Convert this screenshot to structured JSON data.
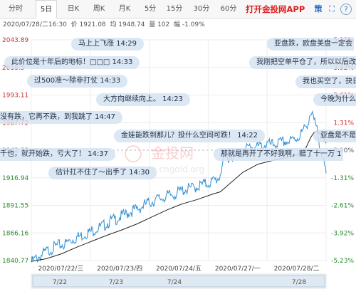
{
  "tabs": [
    {
      "id": "fenshi",
      "label": "分时",
      "active": false
    },
    {
      "id": "5day",
      "label": "5日",
      "active": true
    },
    {
      "id": "dayk",
      "label": "日K",
      "active": false
    },
    {
      "id": "weekk",
      "label": "周K",
      "active": false
    },
    {
      "id": "monthk",
      "label": "月K",
      "active": false
    },
    {
      "id": "5min",
      "label": "5分",
      "active": false
    },
    {
      "id": "15min",
      "label": "15分",
      "active": false
    },
    {
      "id": "30min",
      "label": "30分",
      "active": false
    },
    {
      "id": "60min",
      "label": "60分",
      "active": false
    }
  ],
  "promo": "打开金投网APP",
  "icons": {
    "policy": "策",
    "expand": "⛶",
    "help": "?"
  },
  "info": {
    "datetime": "2020/07/28/二16:30",
    "price": "价 1921.08",
    "avg": "均 1948.74",
    "volume": "量 102",
    "change": "幅 -1.09%"
  },
  "watermark": {
    "line1": "金投网",
    "line2": "quote.cngold.org"
  },
  "chart_data": {
    "type": "line",
    "title": "",
    "xlabel": "",
    "ylabel": "",
    "ylim": [
      1840.77,
      2043.89
    ],
    "base_price": 1942.33,
    "grid": true,
    "price_ticks": [
      "2043.89",
      "2018.5",
      "1993.11",
      "1967.72",
      "1942.33",
      "1916.94",
      "1891.55",
      "1866.16",
      "1840.77"
    ],
    "percent_ticks": [
      "5.23%",
      "3.92%",
      "2.61%",
      "1.31%",
      "0.00%",
      "-1.31%",
      "-2.61%",
      "-3.92%",
      "-5.23%"
    ],
    "day_labels": [
      "2020/07/22/三",
      "2020/07/23/四",
      "2020/07/24/五",
      "2020/07/27/一",
      "2020/07/28/二"
    ],
    "nav_labels": [
      "7/22",
      "7/23",
      "7/24",
      "7/28"
    ],
    "series": [
      {
        "name": "价",
        "x": [
          0,
          3,
          8,
          14,
          20,
          28,
          35,
          40,
          45,
          50,
          55,
          60,
          66,
          72,
          78,
          84,
          90,
          95,
          100,
          106,
          112,
          118,
          124,
          130,
          136,
          141,
          147,
          152,
          158,
          163,
          168,
          173,
          178,
          183,
          188,
          192,
          196,
          200,
          205,
          210,
          215,
          220,
          226,
          232,
          238,
          244,
          249,
          252,
          256,
          262,
          268,
          274,
          280,
          285,
          289,
          294,
          300,
          306,
          312,
          318,
          324,
          330,
          336,
          342,
          348,
          354,
          358,
          362,
          366,
          369,
          372,
          375,
          378,
          380,
          382,
          384,
          386,
          388,
          390
        ],
        "y": [
          1839.2,
          1841.0,
          1843.5,
          1845.8,
          1849.0,
          1852.1,
          1854.5,
          1855.2,
          1856.0,
          1858.5,
          1860.2,
          1862.0,
          1863.5,
          1865.8,
          1867.0,
          1869.5,
          1871.0,
          1872.5,
          1875.0,
          1877.5,
          1879.0,
          1881.2,
          1883.0,
          1885.5,
          1887.0,
          1888.5,
          1890.5,
          1893.0,
          1894.5,
          1896.0,
          1897.5,
          1898.5,
          1899.5,
          1900.8,
          1901.5,
          1902.5,
          1904.0,
          1905.5,
          1906.5,
          1907.0,
          1908.0,
          1909.0,
          1910.5,
          1911.5,
          1913.0,
          1915.0,
          1917.5,
          1928.0,
          1933.5,
          1936.5,
          1938.0,
          1938.5,
          1940.0,
          1943.5,
          1946.0,
          1945.0,
          1945.5,
          1946.0,
          1948.0,
          1947.0,
          1948.5,
          1949.0,
          1950.5,
          1950.0,
          1952.5,
          1955.0,
          1958.5,
          1962.0,
          1968.5,
          1976.0,
          1973.0,
          1967.0,
          1960.0,
          1954.0,
          1948.0,
          1941.0,
          1933.0,
          1925.0,
          1921.08
        ]
      },
      {
        "name": "均",
        "x": [
          0,
          20,
          40,
          60,
          80,
          100,
          120,
          140,
          160,
          180,
          200,
          220,
          240,
          250,
          260,
          280,
          300,
          320,
          340,
          360,
          366,
          370,
          374,
          378,
          382,
          386,
          390
        ],
        "y": [
          1840.0,
          1842.5,
          1847.0,
          1853.0,
          1858.5,
          1864.0,
          1869.0,
          1874.5,
          1881.0,
          1887.5,
          1893.0,
          1897.0,
          1902.0,
          1904.0,
          1910.0,
          1922.0,
          1929.5,
          1933.0,
          1936.0,
          1939.5,
          1948.5,
          1954.5,
          1958.5,
          1960.0,
          1957.5,
          1954.0,
          1948.74
        ]
      }
    ]
  },
  "bubbles": [
    {
      "text": "马上上飞涨 14:29"
    },
    {
      "text": "亚盘跌，欧盘美盘一定会"
    },
    {
      "text": "此价位是十年后的地标！□□□ 14:33"
    },
    {
      "text": "我刚把空单平仓了，所以以后改"
    },
    {
      "text": "过500准～除非打仗 14:33"
    },
    {
      "text": "我也买空了，抉日"
    },
    {
      "text": "大方向继续向上。 14:23"
    },
    {
      "text": "今晚为什么"
    },
    {
      "text": "没有跌，它再不跌，到我跳了 14:47"
    },
    {
      "text": "金娃能跌到那儿？投什么空间可跌！ 14:22"
    },
    {
      "text": "亚盘是不是什么"
    },
    {
      "text": "千也，就开始跌，亏大了！ 14:37"
    },
    {
      "text": "那就是再开了不好我啊，赔了十一万 1"
    },
    {
      "text": "估计扛不住了～出手了 14:30"
    }
  ]
}
